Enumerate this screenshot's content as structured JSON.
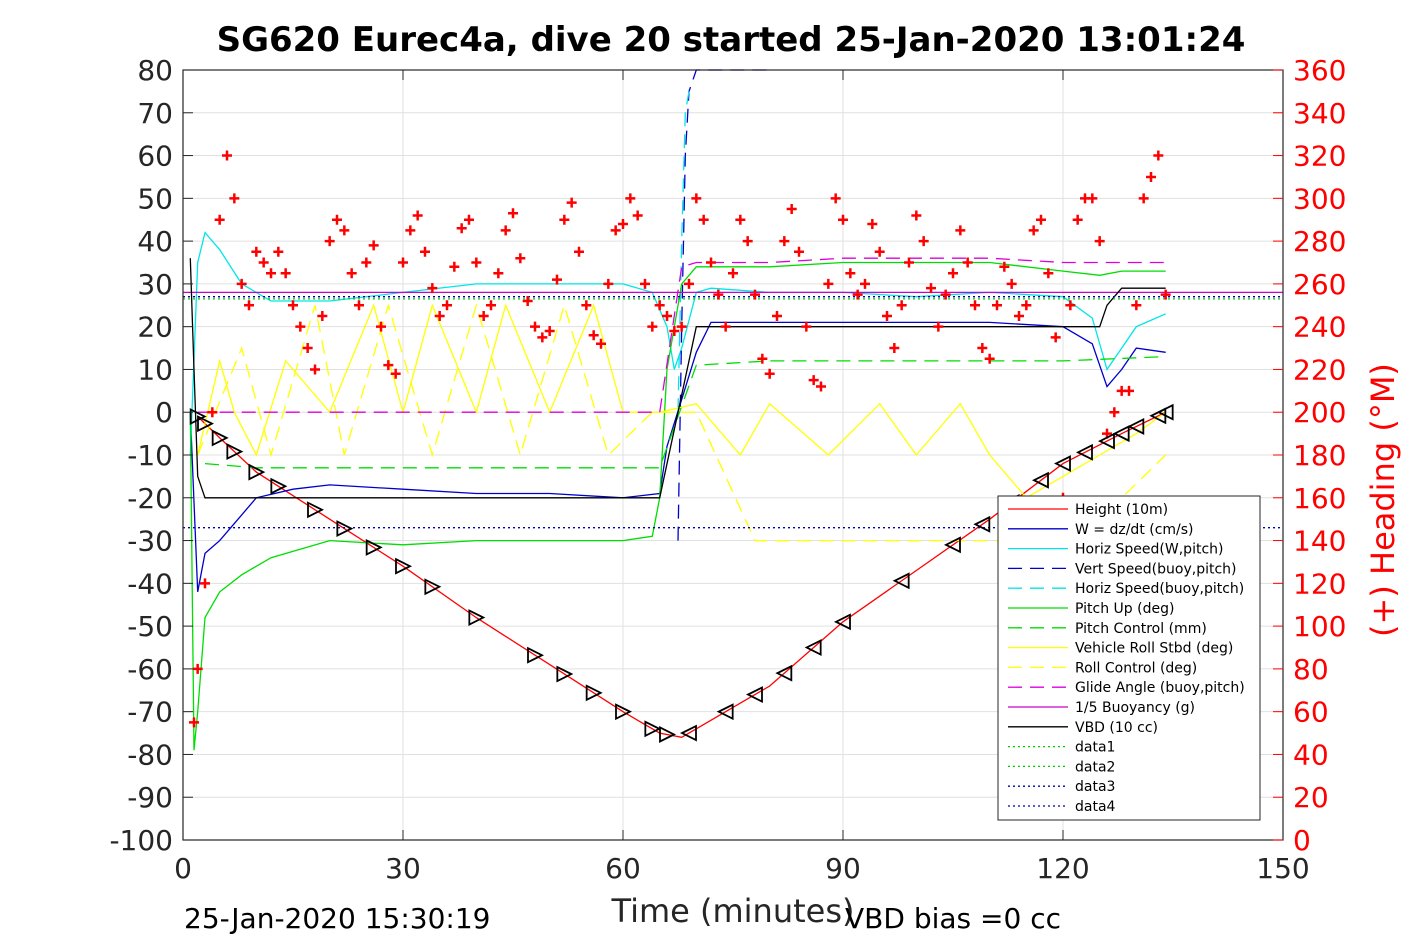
{
  "chart_data": {
    "type": "line",
    "title": "SG620 Eurec4a, dive 20 started 25-Jan-2020 13:01:24",
    "xlabel": "Time (minutes)",
    "ylabel_right": "(+) Heading (°M)",
    "footer_left": "25-Jan-2020 15:30:19",
    "footer_right": "VBD bias =0 cc",
    "xlim": [
      0,
      150
    ],
    "ylim": [
      -100,
      80
    ],
    "ylim_right": [
      0,
      360
    ],
    "x_ticks": [
      "0",
      "30",
      "60",
      "90",
      "120",
      "150"
    ],
    "y_ticks": [
      "80",
      "70",
      "60",
      "50",
      "40",
      "30",
      "20",
      "10",
      "0",
      "-10",
      "-20",
      "-30",
      "-40",
      "-50",
      "-60",
      "-70",
      "-80",
      "-90",
      "-100"
    ],
    "y_right_ticks": [
      "360",
      "340",
      "320",
      "300",
      "280",
      "260",
      "240",
      "220",
      "200",
      "180",
      "160",
      "140",
      "120",
      "100",
      "80",
      "60",
      "40",
      "20",
      "0"
    ],
    "grid": true,
    "legend_placement": "bottom-right",
    "legend": [
      {
        "label": "Height (10m)",
        "color": "#ff0000",
        "style": "solid"
      },
      {
        "label": "W = dz/dt (cm/s)",
        "color": "#0000cc",
        "style": "solid"
      },
      {
        "label": "Horiz Speed(W,pitch)",
        "color": "#00e6e6",
        "style": "solid"
      },
      {
        "label": "Vert Speed(buoy,pitch)",
        "color": "#0000cc",
        "style": "dashed"
      },
      {
        "label": "Horiz Speed(buoy,pitch)",
        "color": "#00e6e6",
        "style": "dashed"
      },
      {
        "label": "Pitch Up (deg)",
        "color": "#00dd00",
        "style": "solid"
      },
      {
        "label": "Pitch Control (mm)",
        "color": "#00dd00",
        "style": "dashed"
      },
      {
        "label": "Vehicle Roll Stbd (deg)",
        "color": "#ffff00",
        "style": "solid"
      },
      {
        "label": "Roll Control (deg)",
        "color": "#ffff00",
        "style": "dashed"
      },
      {
        "label": "Glide Angle (buoy,pitch)",
        "color": "#dd00dd",
        "style": "dashed"
      },
      {
        "label": "1/5 Buoyancy (g)",
        "color": "#cc00cc",
        "style": "solid"
      },
      {
        "label": "VBD (10 cc)",
        "color": "#000000",
        "style": "solid"
      },
      {
        "label": "data1",
        "color": "#00cc00",
        "style": "dotted"
      },
      {
        "label": "data2",
        "color": "#00cc00",
        "style": "dotted"
      },
      {
        "label": "data3",
        "color": "#0000aa",
        "style": "dotted"
      },
      {
        "label": "data4",
        "color": "#0000aa",
        "style": "dotted"
      }
    ],
    "series": [
      {
        "name": "Height (10m)",
        "axis": "left",
        "color": "#ff0000",
        "style": "solid",
        "x": [
          2,
          5,
          10,
          20,
          30,
          40,
          50,
          60,
          65,
          68,
          70,
          80,
          90,
          100,
          110,
          120,
          128,
          134
        ],
        "values": [
          -1,
          -6,
          -14,
          -25,
          -36,
          -48,
          -59,
          -70,
          -75,
          -76,
          -74,
          -64,
          -49,
          -37,
          -25,
          -12,
          -5,
          0
        ]
      },
      {
        "name": "W = dz/dt (cm/s)",
        "axis": "left",
        "color": "#0000cc",
        "style": "solid",
        "x": [
          1,
          2,
          3,
          5,
          8,
          10,
          15,
          20,
          30,
          40,
          50,
          60,
          65,
          66,
          68,
          70,
          72,
          80,
          90,
          100,
          110,
          120,
          124,
          126,
          128,
          130,
          134
        ],
        "values": [
          0,
          -42,
          -33,
          -30,
          -24,
          -20,
          -18,
          -17,
          -18,
          -19,
          -19,
          -20,
          -19,
          -8,
          3,
          14,
          21,
          21,
          21,
          21,
          21,
          20,
          16,
          6,
          10,
          15,
          14
        ]
      },
      {
        "name": "Horiz Speed(W,pitch)",
        "axis": "left",
        "color": "#00e6e6",
        "style": "solid",
        "x": [
          1,
          2,
          3,
          5,
          8,
          12,
          20,
          30,
          40,
          50,
          60,
          64,
          66,
          67,
          68,
          70,
          72,
          80,
          90,
          100,
          110,
          120,
          124,
          126,
          128,
          130,
          134
        ],
        "values": [
          -10,
          35,
          42,
          38,
          30,
          26,
          26,
          28,
          30,
          30,
          30,
          28,
          20,
          10,
          15,
          28,
          29,
          28,
          28,
          27,
          28,
          27,
          22,
          10,
          15,
          20,
          23
        ]
      },
      {
        "name": "Vert Speed(buoy,pitch)",
        "axis": "left",
        "color": "#0000cc",
        "style": "dashed",
        "x": [
          67.5,
          68,
          68.5,
          69,
          70,
          72,
          75,
          78,
          80
        ],
        "values": [
          -30,
          20,
          60,
          75,
          80,
          80,
          80,
          80,
          80
        ]
      },
      {
        "name": "Horiz Speed(buoy,pitch)",
        "axis": "left",
        "color": "#00e6e6",
        "style": "dashed",
        "x": [
          67.5,
          68,
          68.5,
          69
        ],
        "values": [
          0,
          40,
          70,
          75
        ]
      },
      {
        "name": "Pitch Up (deg)",
        "axis": "left",
        "color": "#00dd00",
        "style": "solid",
        "x": [
          1,
          1.5,
          2,
          3,
          5,
          8,
          12,
          20,
          30,
          40,
          50,
          60,
          64,
          65,
          66,
          68,
          70,
          80,
          90,
          100,
          110,
          120,
          125,
          128,
          134
        ],
        "values": [
          0,
          -79,
          -70,
          -48,
          -42,
          -38,
          -34,
          -30,
          -31,
          -30,
          -30,
          -30,
          -29,
          -20,
          10,
          30,
          34,
          34,
          35,
          35,
          35,
          33,
          32,
          33,
          33
        ]
      },
      {
        "name": "Pitch Control (mm)",
        "axis": "left",
        "color": "#00dd00",
        "style": "dashed",
        "x": [
          3,
          10,
          20,
          30,
          40,
          50,
          60,
          65,
          70,
          80,
          90,
          100,
          110,
          120,
          134
        ],
        "values": [
          -12,
          -13,
          -13,
          -13,
          -13,
          -13,
          -13,
          -13,
          11,
          12,
          12,
          12,
          12,
          12,
          13
        ]
      },
      {
        "name": "Vehicle Roll Stbd (deg)",
        "axis": "left",
        "color": "#ffff00",
        "style": "solid",
        "x": [
          2,
          5,
          7,
          10,
          14,
          20,
          26,
          30,
          34,
          40,
          44,
          50,
          56,
          60,
          65,
          70,
          76,
          80,
          88,
          95,
          100,
          106,
          110,
          115,
          120,
          125,
          130,
          134
        ],
        "values": [
          -10,
          12,
          0,
          -10,
          12,
          0,
          25,
          0,
          25,
          0,
          25,
          0,
          25,
          0,
          0,
          2,
          -10,
          2,
          -10,
          2,
          -10,
          2,
          -10,
          -20,
          -15,
          -10,
          -5,
          0
        ]
      },
      {
        "name": "Roll Control (deg)",
        "axis": "left",
        "color": "#ffff00",
        "style": "dashed",
        "x": [
          2,
          8,
          12,
          18,
          22,
          28,
          34,
          40,
          46,
          52,
          58,
          64,
          70,
          78,
          86,
          94,
          102,
          110,
          118,
          124,
          128,
          134
        ],
        "values": [
          -10,
          15,
          -10,
          25,
          -10,
          25,
          -10,
          25,
          -10,
          25,
          -10,
          0,
          0,
          -30,
          -30,
          -30,
          -30,
          -30,
          -30,
          -30,
          -20,
          -10
        ]
      },
      {
        "name": "Glide Angle (buoy,pitch)",
        "axis": "left",
        "color": "#dd00dd",
        "style": "dashed",
        "x": [
          2,
          10,
          20,
          30,
          40,
          50,
          60,
          65,
          68,
          70,
          80,
          90,
          100,
          110,
          120,
          134
        ],
        "values": [
          0,
          0,
          0,
          0,
          0,
          0,
          0,
          0,
          34,
          35,
          35,
          36,
          36,
          36,
          35,
          35
        ]
      },
      {
        "name": "1/5 Buoyancy (g)",
        "axis": "left",
        "color": "#cc00cc",
        "style": "solid",
        "x": [
          0,
          150
        ],
        "values": [
          28,
          28
        ]
      },
      {
        "name": "VBD (10 cc)",
        "axis": "left",
        "color": "#000000",
        "style": "solid",
        "x": [
          1,
          1.5,
          2,
          3,
          5,
          10,
          20,
          30,
          40,
          50,
          60,
          65,
          70,
          71,
          80,
          90,
          100,
          110,
          120,
          125,
          126,
          127,
          128,
          134
        ],
        "values": [
          36,
          10,
          -15,
          -20,
          -20,
          -20,
          -20,
          -20,
          -20,
          -20,
          -20,
          -20,
          20,
          20,
          20,
          20,
          20,
          20,
          20,
          20,
          25,
          27,
          29,
          29
        ]
      },
      {
        "name": "data1",
        "axis": "left",
        "color": "#00cc00",
        "style": "dotted",
        "x": [
          0,
          150
        ],
        "values": [
          27,
          27
        ]
      },
      {
        "name": "data2",
        "axis": "left",
        "color": "#00cc00",
        "style": "dotted",
        "x": [
          0,
          150
        ],
        "values": [
          26.5,
          26.5
        ]
      },
      {
        "name": "data3",
        "axis": "left",
        "color": "#0000aa",
        "style": "dotted",
        "x": [
          0,
          150
        ],
        "values": [
          27,
          27
        ]
      },
      {
        "name": "data4",
        "axis": "left",
        "color": "#0000aa",
        "style": "dotted",
        "x": [
          0,
          150
        ],
        "values": [
          -27,
          -27
        ]
      }
    ],
    "heading": {
      "axis": "right",
      "color": "#ff0000",
      "marker": "+",
      "x": [
        1.5,
        2,
        3,
        4,
        5,
        6,
        7,
        8,
        9,
        10,
        11,
        12,
        13,
        14,
        15,
        16,
        17,
        18,
        19,
        20,
        21,
        22,
        23,
        24,
        25,
        26,
        27,
        28,
        29,
        30,
        31,
        32,
        33,
        34,
        35,
        36,
        37,
        38,
        39,
        40,
        41,
        42,
        43,
        44,
        45,
        46,
        47,
        48,
        49,
        50,
        51,
        52,
        53,
        54,
        55,
        56,
        57,
        58,
        59,
        60,
        61,
        62,
        63,
        64,
        65,
        66,
        67,
        68,
        69,
        70,
        71,
        72,
        73,
        74,
        75,
        76,
        77,
        78,
        79,
        80,
        81,
        82,
        83,
        84,
        85,
        86,
        87,
        88,
        89,
        90,
        91,
        92,
        93,
        94,
        95,
        96,
        97,
        98,
        99,
        100,
        101,
        102,
        103,
        104,
        105,
        106,
        107,
        108,
        109,
        110,
        111,
        112,
        113,
        114,
        115,
        116,
        117,
        118,
        119,
        120,
        121,
        122,
        123,
        124,
        125,
        126,
        127,
        128,
        129,
        130,
        131,
        132,
        133,
        134
      ],
      "values": [
        55,
        80,
        120,
        200,
        290,
        320,
        300,
        260,
        250,
        275,
        270,
        265,
        275,
        265,
        250,
        240,
        230,
        220,
        245,
        280,
        290,
        285,
        265,
        250,
        270,
        278,
        240,
        222,
        218,
        270,
        285,
        292,
        275,
        258,
        245,
        250,
        268,
        286,
        290,
        270,
        245,
        250,
        265,
        285,
        293,
        272,
        252,
        240,
        235,
        238,
        262,
        290,
        298,
        275,
        250,
        236,
        232,
        260,
        285,
        288,
        300,
        292,
        260,
        240,
        250,
        245,
        238,
        240,
        260,
        300,
        290,
        270,
        255,
        240,
        265,
        290,
        280,
        255,
        225,
        218,
        245,
        280,
        295,
        275,
        240,
        215,
        212,
        260,
        300,
        290,
        265,
        255,
        260,
        288,
        275,
        245,
        230,
        250,
        270,
        292,
        280,
        258,
        240,
        255,
        265,
        285,
        270,
        250,
        230,
        225,
        250,
        268,
        260,
        245,
        250,
        285,
        290,
        265,
        235,
        160,
        250,
        290,
        300,
        300,
        280,
        190,
        200,
        210,
        210,
        250,
        300,
        310,
        320,
        255
      ]
    },
    "markers": {
      "color": "#000000",
      "down_triangles_x": [
        2,
        3,
        5,
        7,
        10,
        13,
        18,
        22,
        26,
        30,
        34,
        40,
        48,
        52,
        56,
        60,
        64,
        66
      ],
      "up_triangles_x": [
        69,
        74,
        78,
        82,
        86,
        90,
        98,
        105,
        109,
        113,
        117,
        120,
        123,
        126,
        128,
        130,
        133,
        134
      ]
    }
  }
}
